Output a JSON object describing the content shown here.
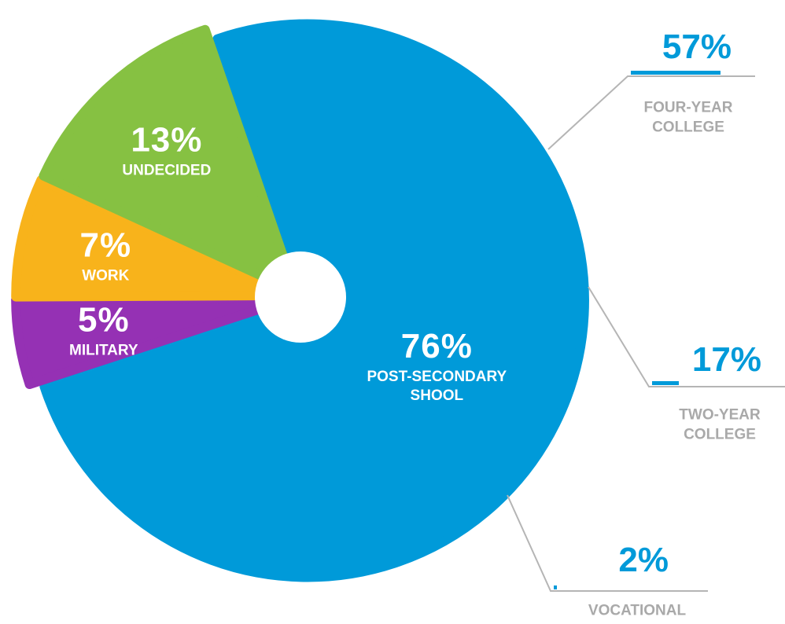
{
  "chart_data": {
    "type": "pie",
    "categories": [
      "POST-SECONDARY SHOOL",
      "MILITARY",
      "WORK",
      "UNDECIDED"
    ],
    "values": [
      76,
      5,
      7,
      13
    ],
    "value_labels": [
      "76%",
      "5%",
      "7%",
      "13%"
    ],
    "colors": [
      "#009ad9",
      "#9531b4",
      "#f8b31b",
      "#86c142"
    ],
    "breakdown": {
      "categories": [
        "FOUR-YEAR COLLEGE",
        "TWO-YEAR COLLEGE",
        "VOCATIONAL"
      ],
      "values": [
        57,
        17,
        2
      ],
      "value_labels": [
        "57%",
        "17%",
        "2%"
      ],
      "color": "#009ad9"
    }
  }
}
